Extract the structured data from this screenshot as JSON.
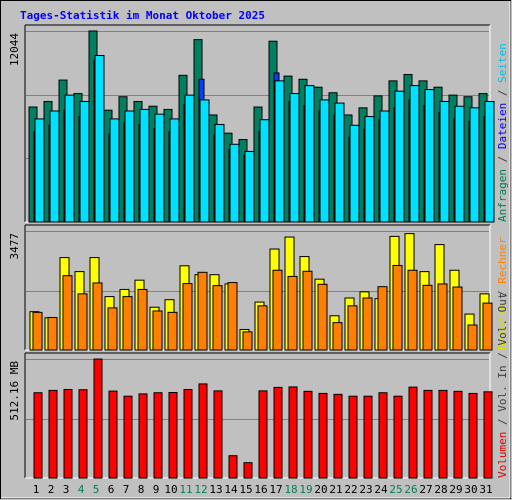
{
  "title": "Tages-Statistik im Monat Oktober 2025",
  "panels": {
    "top": {
      "ylabel_max": "12044",
      "legend": [
        {
          "text": "Anfragen",
          "color": "#00804f"
        },
        {
          "text": " / ",
          "color": "#404040"
        },
        {
          "text": "Dateien",
          "color": "#0000ff"
        },
        {
          "text": " / ",
          "color": "#404040"
        },
        {
          "text": "Seiten",
          "color": "#00c0e0"
        }
      ]
    },
    "mid": {
      "ylabel_max": "3477",
      "legend": [
        {
          "text": "Besuche",
          "color": "#e0e000"
        },
        {
          "text": " / ",
          "color": "#404040"
        },
        {
          "text": "Rechner",
          "color": "#ff8000"
        }
      ]
    },
    "bot": {
      "ylabel_max": "512.16 MB",
      "legend": [
        {
          "text": "Volumen",
          "color": "#e00000"
        },
        {
          "text": " / ",
          "color": "#404040"
        },
        {
          "text": "Vol. In",
          "color": "#404040"
        },
        {
          "text": " / ",
          "color": "#404040"
        },
        {
          "text": "Vol. Out",
          "color": "#404040"
        }
      ]
    }
  },
  "colors": {
    "requests": "#008060",
    "files": "#0040ff",
    "pages": "#00e0ff",
    "visits": "#ffff00",
    "hosts": "#ff8000",
    "volume": "#ff0000",
    "title": "#0000ff",
    "weekend_tick": "#00804f",
    "tick": "#000000"
  },
  "chart_data": [
    {
      "type": "bar",
      "title": "Tages-Statistik im Monat Oktober 2025",
      "categories": [
        "1",
        "2",
        "3",
        "4",
        "5",
        "6",
        "7",
        "8",
        "9",
        "10",
        "11",
        "12",
        "13",
        "14",
        "15",
        "16",
        "17",
        "18",
        "19",
        "20",
        "21",
        "22",
        "23",
        "24",
        "25",
        "26",
        "27",
        "28",
        "29",
        "30",
        "31"
      ],
      "weekend_days": [
        "4",
        "5",
        "11",
        "12",
        "18",
        "19",
        "25",
        "26"
      ],
      "ylim": [
        0,
        12044
      ],
      "ylabel": "12044",
      "series": [
        {
          "name": "Anfragen",
          "values": [
            7250,
            7600,
            8950,
            8100,
            12044,
            7050,
            7900,
            7600,
            7300,
            7100,
            9250,
            11500,
            6750,
            5600,
            5200,
            7250,
            11400,
            9200,
            9000,
            8500,
            8150,
            6750,
            7200,
            7950,
            8900,
            9300,
            8900,
            8500,
            8000,
            7900,
            8100
          ]
        },
        {
          "name": "Dateien",
          "values": [
            5700,
            6100,
            7050,
            6650,
            10200,
            5550,
            6250,
            6150,
            5900,
            5700,
            7400,
            9000,
            5500,
            4600,
            4200,
            5700,
            9400,
            7600,
            7350,
            7050,
            6750,
            5350,
            5850,
            6450,
            7200,
            7700,
            7350,
            6900,
            6500,
            6350,
            6650
          ]
        },
        {
          "name": "Seiten",
          "values": [
            6500,
            7000,
            8000,
            7600,
            10500,
            6500,
            7000,
            7100,
            6800,
            6500,
            8000,
            7700,
            6150,
            4900,
            4450,
            6450,
            8900,
            8100,
            8600,
            7700,
            7500,
            6100,
            6650,
            7000,
            8250,
            8600,
            8350,
            7600,
            7300,
            7200,
            7600
          ]
        }
      ]
    },
    {
      "type": "bar",
      "categories": [
        "1",
        "2",
        "3",
        "4",
        "5",
        "6",
        "7",
        "8",
        "9",
        "10",
        "11",
        "12",
        "13",
        "14",
        "15",
        "16",
        "17",
        "18",
        "19",
        "20",
        "21",
        "22",
        "23",
        "24",
        "25",
        "26",
        "27",
        "28",
        "29",
        "30",
        "31"
      ],
      "ylim": [
        0,
        3477
      ],
      "ylabel": "3477",
      "series": [
        {
          "name": "Besuche",
          "values": [
            1120,
            940,
            2700,
            2290,
            2700,
            1560,
            1770,
            2040,
            1250,
            1470,
            2460,
            2200,
            2200,
            1930,
            600,
            1400,
            2950,
            3300,
            2730,
            2070,
            1000,
            1520,
            1700,
            1500,
            3320,
            3400,
            2290,
            3080,
            2330,
            1050,
            1640
          ]
        },
        {
          "name": "Rechner",
          "values": [
            1100,
            950,
            2170,
            1640,
            1960,
            1230,
            1560,
            1770,
            1140,
            1100,
            1940,
            2270,
            1880,
            1970,
            530,
            1290,
            2330,
            2150,
            2300,
            1920,
            800,
            1290,
            1520,
            1850,
            2470,
            2330,
            1890,
            1930,
            1840,
            730,
            1370
          ]
        }
      ]
    },
    {
      "type": "bar",
      "categories": [
        "1",
        "2",
        "3",
        "4",
        "5",
        "6",
        "7",
        "8",
        "9",
        "10",
        "11",
        "12",
        "13",
        "14",
        "15",
        "16",
        "17",
        "18",
        "19",
        "20",
        "21",
        "22",
        "23",
        "24",
        "25",
        "26",
        "27",
        "28",
        "29",
        "30",
        "31"
      ],
      "ylim": [
        0,
        512.16
      ],
      "ylabel": "512.16 MB",
      "series": [
        {
          "name": "Volumen",
          "values": [
            367,
            377,
            381,
            380,
            512,
            374,
            352,
            362,
            367,
            368,
            381,
            405,
            375,
            96,
            66,
            375,
            390,
            392,
            373,
            364,
            360,
            352,
            352,
            367,
            352,
            391,
            377,
            377,
            373,
            364,
            371
          ]
        }
      ]
    }
  ]
}
